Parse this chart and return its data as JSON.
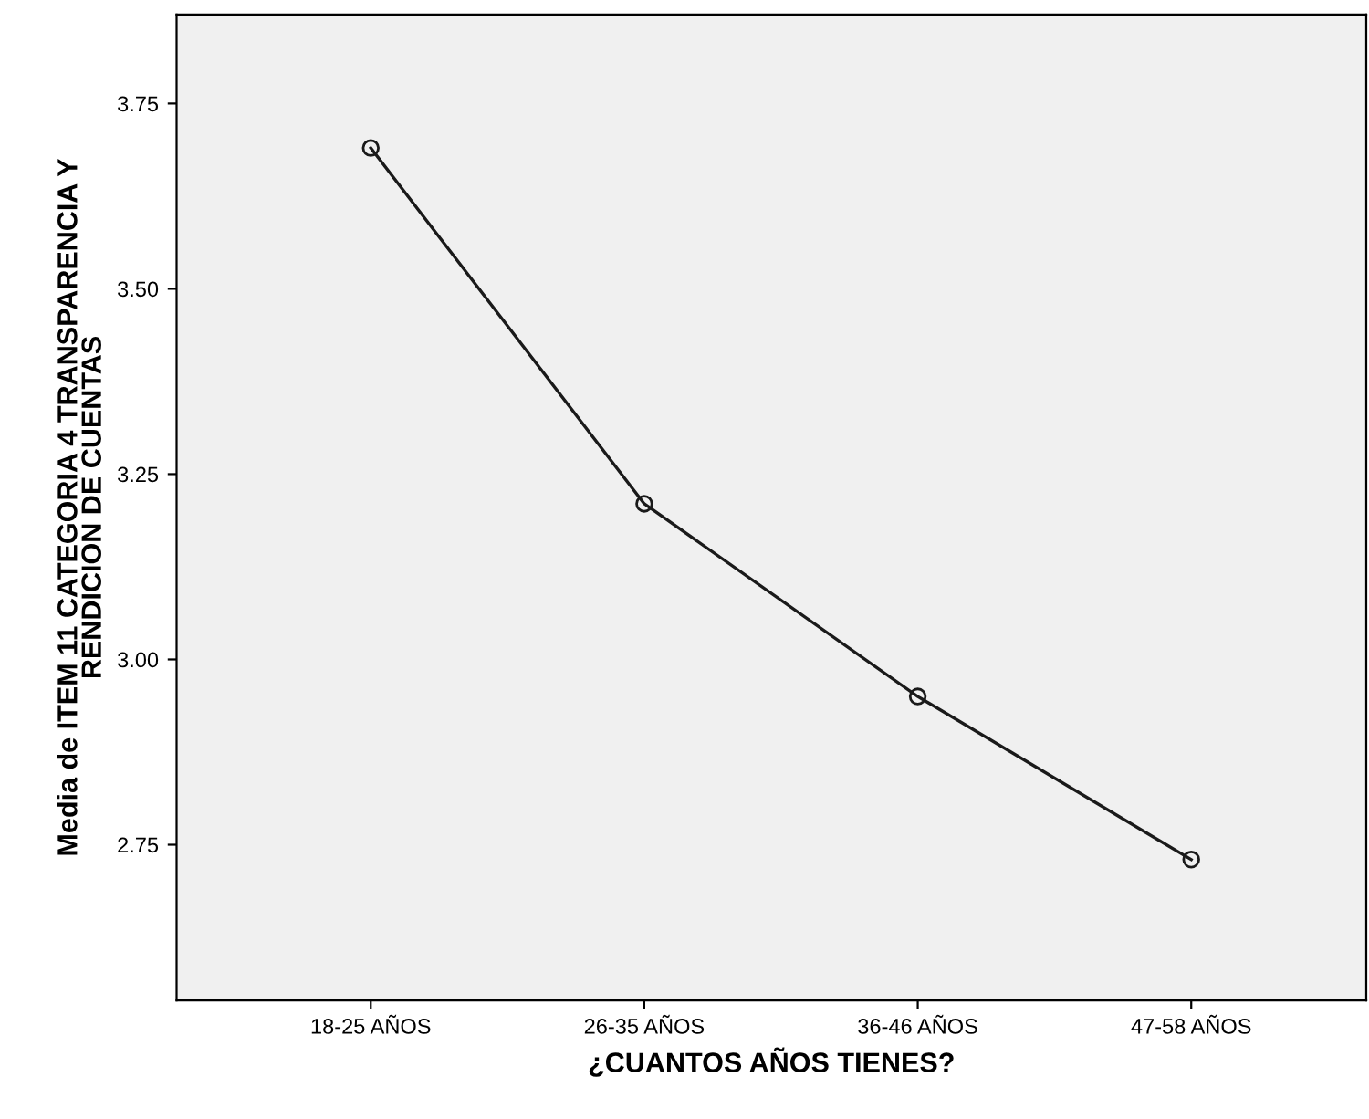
{
  "chart_data": {
    "type": "line",
    "xlabel": "¿CUANTOS AÑOS TIENES?",
    "ylabel": "Media de ITEM 11 CATEGORIA 4 TRANSPARENCIA Y\nRENDICION DE CUENTAS",
    "categories": [
      "18-25 AÑOS",
      "26-35 AÑOS",
      "36-46 AÑOS",
      "47-58 AÑOS"
    ],
    "series": [
      {
        "color": "#1a1a1a",
        "values": [
          3.69,
          3.21,
          2.95,
          2.73
        ]
      }
    ],
    "ylim": [
      2.54,
      3.87
    ],
    "yticks": [
      {
        "value": 2.75,
        "label": "2.75"
      },
      {
        "value": 3.0,
        "label": "3.00"
      },
      {
        "value": 3.25,
        "label": "3.25"
      },
      {
        "value": 3.5,
        "label": "3.50"
      },
      {
        "value": 3.75,
        "label": "3.75"
      }
    ],
    "grid": false,
    "legend": false,
    "marker": "circle",
    "line_style": "solid"
  }
}
